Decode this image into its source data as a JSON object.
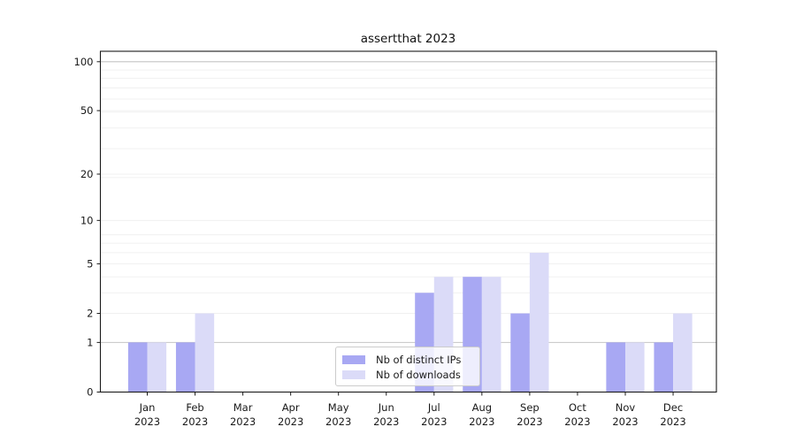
{
  "chart_data": {
    "type": "bar",
    "title": "assertthat 2023",
    "categories": [
      "Jan 2023",
      "Feb 2023",
      "Mar 2023",
      "Apr 2023",
      "May 2023",
      "Jun 2023",
      "Jul 2023",
      "Aug 2023",
      "Sep 2023",
      "Oct 2023",
      "Nov 2023",
      "Dec 2023"
    ],
    "series": [
      {
        "name": "Nb of distinct IPs",
        "color": "#a8a8f3",
        "values": [
          1,
          1,
          0,
          0,
          0,
          0,
          3,
          4,
          2,
          0,
          1,
          1
        ]
      },
      {
        "name": "Nb of downloads",
        "color": "#dbdbf8",
        "values": [
          1,
          2,
          0,
          0,
          0,
          0,
          4,
          4,
          6,
          0,
          1,
          2
        ]
      }
    ],
    "yscale": "log1p",
    "ylim": [
      0,
      100
    ],
    "y_ticks": [
      100,
      50,
      20,
      10,
      5,
      2,
      1,
      0
    ],
    "grid": "horizontal",
    "legend_position": "lower center"
  }
}
